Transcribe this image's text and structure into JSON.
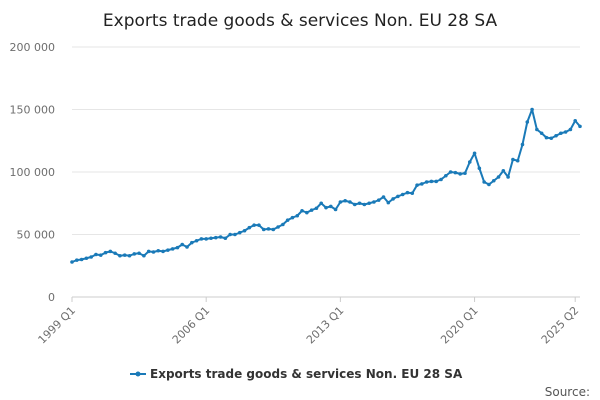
{
  "chart_data": {
    "type": "line",
    "title": "Exports trade goods & services Non. EU 28 SA",
    "xlabel": "",
    "ylabel": "",
    "ylim": [
      0,
      200000
    ],
    "yticks": [
      0,
      50000,
      100000,
      150000,
      200000
    ],
    "ytick_labels": [
      "0",
      "50 000",
      "100 000",
      "150 000",
      "200 000"
    ],
    "xticks": [
      "1999 Q1",
      "2006 Q1",
      "2013 Q1",
      "2020 Q1",
      "2025 Q2"
    ],
    "grid": "horizontal",
    "legend": "bottom-center",
    "series_color": "#1a7ab8",
    "x_start": "1999 Q1",
    "x_end": "2025 Q2",
    "series": [
      {
        "name": "Exports trade goods & services Non. EU 28 SA",
        "values": [
          28000,
          29500,
          30000,
          31000,
          32000,
          34000,
          33500,
          35500,
          36500,
          35000,
          33000,
          33500,
          33000,
          34500,
          35000,
          33000,
          36500,
          36000,
          37000,
          36500,
          37500,
          38500,
          39500,
          42000,
          40000,
          43500,
          45000,
          46500,
          46500,
          47000,
          47500,
          48000,
          47000,
          50000,
          50000,
          51500,
          53000,
          55500,
          57500,
          57500,
          54000,
          54500,
          54000,
          56000,
          58000,
          61500,
          63500,
          65000,
          69000,
          67500,
          69500,
          71000,
          75000,
          71500,
          72500,
          70000,
          76000,
          77000,
          76000,
          74000,
          75000,
          74000,
          75000,
          76000,
          77500,
          80000,
          75500,
          78500,
          80500,
          82000,
          83500,
          83000,
          89500,
          90500,
          92000,
          92500,
          92500,
          94000,
          97000,
          100000,
          99500,
          98500,
          99000,
          108000,
          115000,
          103000,
          92000,
          90000,
          93000,
          96000,
          101000,
          96000,
          110000,
          109000,
          122000,
          140000,
          150000,
          134000,
          131000,
          127500,
          127000,
          129000,
          131000,
          132000,
          134000,
          141000,
          136500
        ]
      }
    ]
  },
  "footer": {
    "source_label": "Source:"
  }
}
